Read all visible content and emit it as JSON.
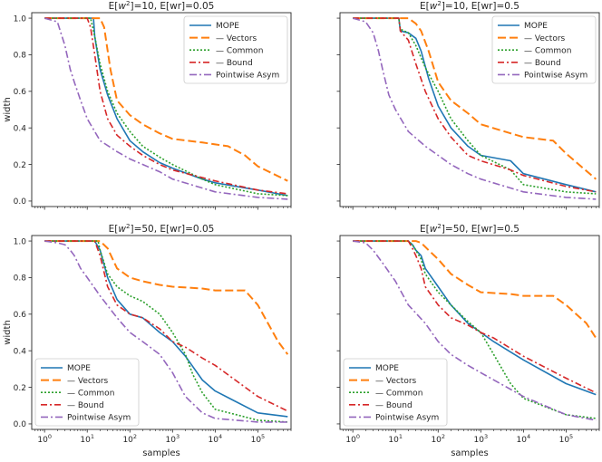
{
  "chart_data": [
    {
      "type": "line",
      "title": "E[w²]=10, E[wr]=0.05",
      "title_parts": {
        "pre": "E[",
        "var": "w",
        "sup": "2",
        "post": "]=10, E[wr]=0.05"
      },
      "xlabel": "",
      "ylabel": "width",
      "xscale": "log",
      "xlim": [
        0.5,
        600000
      ],
      "ylim": [
        -0.03,
        1.03
      ],
      "yticks": [
        "0.0",
        "0.2",
        "0.4",
        "0.6",
        "0.8",
        "1.0"
      ],
      "xticks": [],
      "legend_position": "top-right",
      "series": [
        {
          "name": "MOPE",
          "x": [
            1,
            10,
            14,
            15,
            20,
            30,
            50,
            100,
            200,
            500,
            1000,
            5000,
            10000,
            100000,
            500000
          ],
          "y": [
            1.0,
            1.0,
            1.0,
            0.9,
            0.72,
            0.58,
            0.45,
            0.33,
            0.27,
            0.21,
            0.18,
            0.12,
            0.1,
            0.06,
            0.03
          ]
        },
        {
          "name": "— Vectors",
          "x": [
            1,
            20,
            25,
            35,
            50,
            100,
            200,
            500,
            1000,
            5000,
            10000,
            20000,
            50000,
            100000,
            500000
          ],
          "y": [
            1.0,
            1.0,
            0.95,
            0.72,
            0.55,
            0.47,
            0.42,
            0.37,
            0.34,
            0.32,
            0.31,
            0.3,
            0.25,
            0.19,
            0.11
          ]
        },
        {
          "name": "— Common",
          "x": [
            1,
            12,
            15,
            20,
            30,
            50,
            100,
            200,
            500,
            1000,
            5000,
            10000,
            100000,
            500000
          ],
          "y": [
            1.0,
            1.0,
            0.9,
            0.75,
            0.6,
            0.48,
            0.38,
            0.3,
            0.24,
            0.2,
            0.12,
            0.09,
            0.04,
            0.03
          ]
        },
        {
          "name": "— Bound",
          "x": [
            1,
            10,
            12,
            15,
            20,
            30,
            50,
            100,
            200,
            500,
            1000,
            10000,
            100000,
            500000
          ],
          "y": [
            1.0,
            1.0,
            0.95,
            0.8,
            0.6,
            0.45,
            0.36,
            0.3,
            0.25,
            0.2,
            0.17,
            0.11,
            0.06,
            0.04
          ]
        },
        {
          "name": "Pointwise Asym",
          "x": [
            1,
            2,
            3,
            4,
            5,
            7,
            10,
            15,
            20,
            50,
            100,
            500,
            1000,
            10000,
            100000,
            500000
          ],
          "y": [
            1.0,
            0.98,
            0.85,
            0.72,
            0.65,
            0.55,
            0.45,
            0.38,
            0.33,
            0.27,
            0.23,
            0.16,
            0.12,
            0.05,
            0.02,
            0.01
          ]
        }
      ]
    },
    {
      "type": "line",
      "title": "E[w²]=10, E[wr]=0.5",
      "title_parts": {
        "pre": "E[",
        "var": "w",
        "sup": "2",
        "post": "]=10, E[wr]=0.5"
      },
      "xlabel": "",
      "ylabel": "",
      "xscale": "log",
      "xlim": [
        0.5,
        600000
      ],
      "ylim": [
        -0.03,
        1.03
      ],
      "yticks": [],
      "xticks": [],
      "legend_position": "top-right",
      "series": [
        {
          "name": "MOPE",
          "x": [
            1,
            12,
            13,
            20,
            30,
            40,
            60,
            100,
            200,
            500,
            1000,
            5000,
            10000,
            100000,
            500000
          ],
          "y": [
            1.0,
            1.0,
            0.93,
            0.92,
            0.89,
            0.82,
            0.67,
            0.52,
            0.4,
            0.3,
            0.25,
            0.22,
            0.15,
            0.09,
            0.05
          ]
        },
        {
          "name": "— Vectors",
          "x": [
            1,
            20,
            30,
            40,
            60,
            100,
            200,
            500,
            1000,
            5000,
            10000,
            50000,
            100000,
            500000
          ],
          "y": [
            1.0,
            1.0,
            0.97,
            0.93,
            0.82,
            0.65,
            0.55,
            0.48,
            0.42,
            0.37,
            0.35,
            0.33,
            0.26,
            0.12
          ]
        },
        {
          "name": "— Common",
          "x": [
            1,
            12,
            13,
            20,
            30,
            50,
            100,
            200,
            500,
            1000,
            5000,
            10000,
            100000,
            500000
          ],
          "y": [
            1.0,
            1.0,
            0.94,
            0.92,
            0.85,
            0.73,
            0.6,
            0.45,
            0.33,
            0.25,
            0.17,
            0.09,
            0.05,
            0.04
          ]
        },
        {
          "name": "— Bound",
          "x": [
            1,
            12,
            13,
            20,
            30,
            50,
            100,
            200,
            500,
            1000,
            5000,
            10000,
            100000,
            500000
          ],
          "y": [
            1.0,
            1.0,
            0.93,
            0.88,
            0.75,
            0.6,
            0.45,
            0.35,
            0.25,
            0.22,
            0.17,
            0.14,
            0.08,
            0.05
          ]
        },
        {
          "name": "Pointwise Asym",
          "x": [
            1,
            2,
            3,
            4,
            5,
            7,
            10,
            20,
            50,
            100,
            200,
            500,
            1000,
            10000,
            100000,
            500000
          ],
          "y": [
            1.0,
            0.98,
            0.92,
            0.82,
            0.72,
            0.58,
            0.5,
            0.38,
            0.3,
            0.25,
            0.2,
            0.15,
            0.12,
            0.05,
            0.02,
            0.01
          ]
        }
      ]
    },
    {
      "type": "line",
      "title": "E[w²]=50, E[wr]=0.05",
      "title_parts": {
        "pre": "E[",
        "var": "w",
        "sup": "2",
        "post": "]=50, E[wr]=0.05"
      },
      "xlabel": "samples",
      "ylabel": "width",
      "xscale": "log",
      "xlim": [
        0.5,
        600000
      ],
      "ylim": [
        -0.03,
        1.03
      ],
      "yticks": [
        "0.0",
        "0.2",
        "0.4",
        "0.6",
        "0.8",
        "1.0"
      ],
      "xticks": [
        {
          "base": "10",
          "exp": "0"
        },
        {
          "base": "10",
          "exp": "1"
        },
        {
          "base": "10",
          "exp": "2"
        },
        {
          "base": "10",
          "exp": "3"
        },
        {
          "base": "10",
          "exp": "4"
        },
        {
          "base": "10",
          "exp": "5"
        }
      ],
      "legend_position": "bottom-left",
      "series": [
        {
          "name": "MOPE",
          "x": [
            1,
            15,
            20,
            30,
            50,
            100,
            200,
            500,
            1000,
            2000,
            5000,
            10000,
            100000,
            500000
          ],
          "y": [
            1.0,
            1.0,
            0.95,
            0.8,
            0.68,
            0.6,
            0.58,
            0.5,
            0.45,
            0.37,
            0.24,
            0.18,
            0.06,
            0.04
          ]
        },
        {
          "name": "— Vectors",
          "x": [
            1,
            20,
            30,
            50,
            100,
            200,
            500,
            1000,
            5000,
            10000,
            50000,
            100000,
            300000,
            500000
          ],
          "y": [
            1.0,
            1.0,
            0.96,
            0.85,
            0.8,
            0.78,
            0.76,
            0.75,
            0.74,
            0.73,
            0.73,
            0.65,
            0.45,
            0.38
          ]
        },
        {
          "name": "— Common",
          "x": [
            1,
            18,
            20,
            30,
            50,
            100,
            200,
            500,
            1000,
            2000,
            3000,
            5000,
            10000,
            100000,
            500000
          ],
          "y": [
            1.0,
            1.0,
            0.95,
            0.82,
            0.75,
            0.7,
            0.67,
            0.6,
            0.5,
            0.38,
            0.27,
            0.17,
            0.08,
            0.02,
            0.01
          ]
        },
        {
          "name": "— Bound",
          "x": [
            1,
            15,
            20,
            30,
            50,
            100,
            200,
            500,
            1000,
            2000,
            5000,
            10000,
            100000,
            500000
          ],
          "y": [
            1.0,
            1.0,
            0.92,
            0.75,
            0.65,
            0.6,
            0.58,
            0.52,
            0.45,
            0.42,
            0.36,
            0.32,
            0.15,
            0.07
          ]
        },
        {
          "name": "Pointwise Asym",
          "x": [
            1,
            2,
            3,
            4,
            5,
            7,
            10,
            20,
            50,
            100,
            200,
            500,
            1000,
            2000,
            5000,
            10000,
            100000,
            500000
          ],
          "y": [
            1.0,
            0.99,
            0.98,
            0.95,
            0.92,
            0.85,
            0.8,
            0.7,
            0.58,
            0.5,
            0.45,
            0.38,
            0.28,
            0.15,
            0.06,
            0.03,
            0.01,
            0.01
          ]
        }
      ]
    },
    {
      "type": "line",
      "title": "E[w²]=50, E[wr]=0.5",
      "title_parts": {
        "pre": "E[",
        "var": "w",
        "sup": "2",
        "post": "]=50, E[wr]=0.5"
      },
      "xlabel": "samples",
      "ylabel": "",
      "xscale": "log",
      "xlim": [
        0.5,
        600000
      ],
      "ylim": [
        -0.03,
        1.03
      ],
      "yticks": [],
      "xticks": [
        {
          "base": "10",
          "exp": "0"
        },
        {
          "base": "10",
          "exp": "1"
        },
        {
          "base": "10",
          "exp": "2"
        },
        {
          "base": "10",
          "exp": "3"
        },
        {
          "base": "10",
          "exp": "4"
        },
        {
          "base": "10",
          "exp": "5"
        }
      ],
      "legend_position": "bottom-left",
      "series": [
        {
          "name": "MOPE",
          "x": [
            1,
            20,
            25,
            30,
            40,
            50,
            100,
            200,
            500,
            1000,
            2000,
            10000,
            100000,
            500000
          ],
          "y": [
            1.0,
            1.0,
            0.98,
            0.95,
            0.92,
            0.85,
            0.75,
            0.65,
            0.55,
            0.5,
            0.45,
            0.35,
            0.22,
            0.16
          ]
        },
        {
          "name": "— Vectors",
          "x": [
            1,
            30,
            40,
            60,
            100,
            200,
            500,
            1000,
            5000,
            10000,
            50000,
            100000,
            300000,
            500000
          ],
          "y": [
            1.0,
            1.0,
            0.99,
            0.95,
            0.9,
            0.82,
            0.76,
            0.72,
            0.71,
            0.7,
            0.7,
            0.65,
            0.55,
            0.47
          ]
        },
        {
          "name": "— Common",
          "x": [
            1,
            20,
            25,
            30,
            40,
            50,
            100,
            200,
            500,
            1000,
            2000,
            5000,
            10000,
            100000,
            500000
          ],
          "y": [
            1.0,
            1.0,
            0.98,
            0.95,
            0.9,
            0.82,
            0.72,
            0.65,
            0.56,
            0.5,
            0.38,
            0.22,
            0.14,
            0.05,
            0.03
          ]
        },
        {
          "name": "— Bound",
          "x": [
            1,
            20,
            25,
            30,
            40,
            50,
            100,
            200,
            500,
            1000,
            2000,
            10000,
            100000,
            500000
          ],
          "y": [
            1.0,
            1.0,
            0.96,
            0.92,
            0.85,
            0.75,
            0.65,
            0.58,
            0.54,
            0.5,
            0.47,
            0.37,
            0.25,
            0.17
          ]
        },
        {
          "name": "Pointwise Asym",
          "x": [
            1,
            2,
            3,
            5,
            10,
            20,
            50,
            100,
            200,
            500,
            1000,
            10000,
            100000,
            500000
          ],
          "y": [
            1.0,
            0.99,
            0.95,
            0.88,
            0.78,
            0.65,
            0.55,
            0.45,
            0.38,
            0.32,
            0.28,
            0.15,
            0.05,
            0.02
          ]
        }
      ]
    }
  ],
  "styles": {
    "colors": [
      "#1f77b4",
      "#ff7f0e",
      "#2ca02c",
      "#d62728",
      "#9467bd"
    ],
    "dashes": [
      "",
      "9,4",
      "2,2",
      "7,3,2,3",
      "8,3,2,3"
    ],
    "widths": [
      1.6,
      2.0,
      1.6,
      1.6,
      1.6
    ],
    "axis_color": "#262626"
  }
}
